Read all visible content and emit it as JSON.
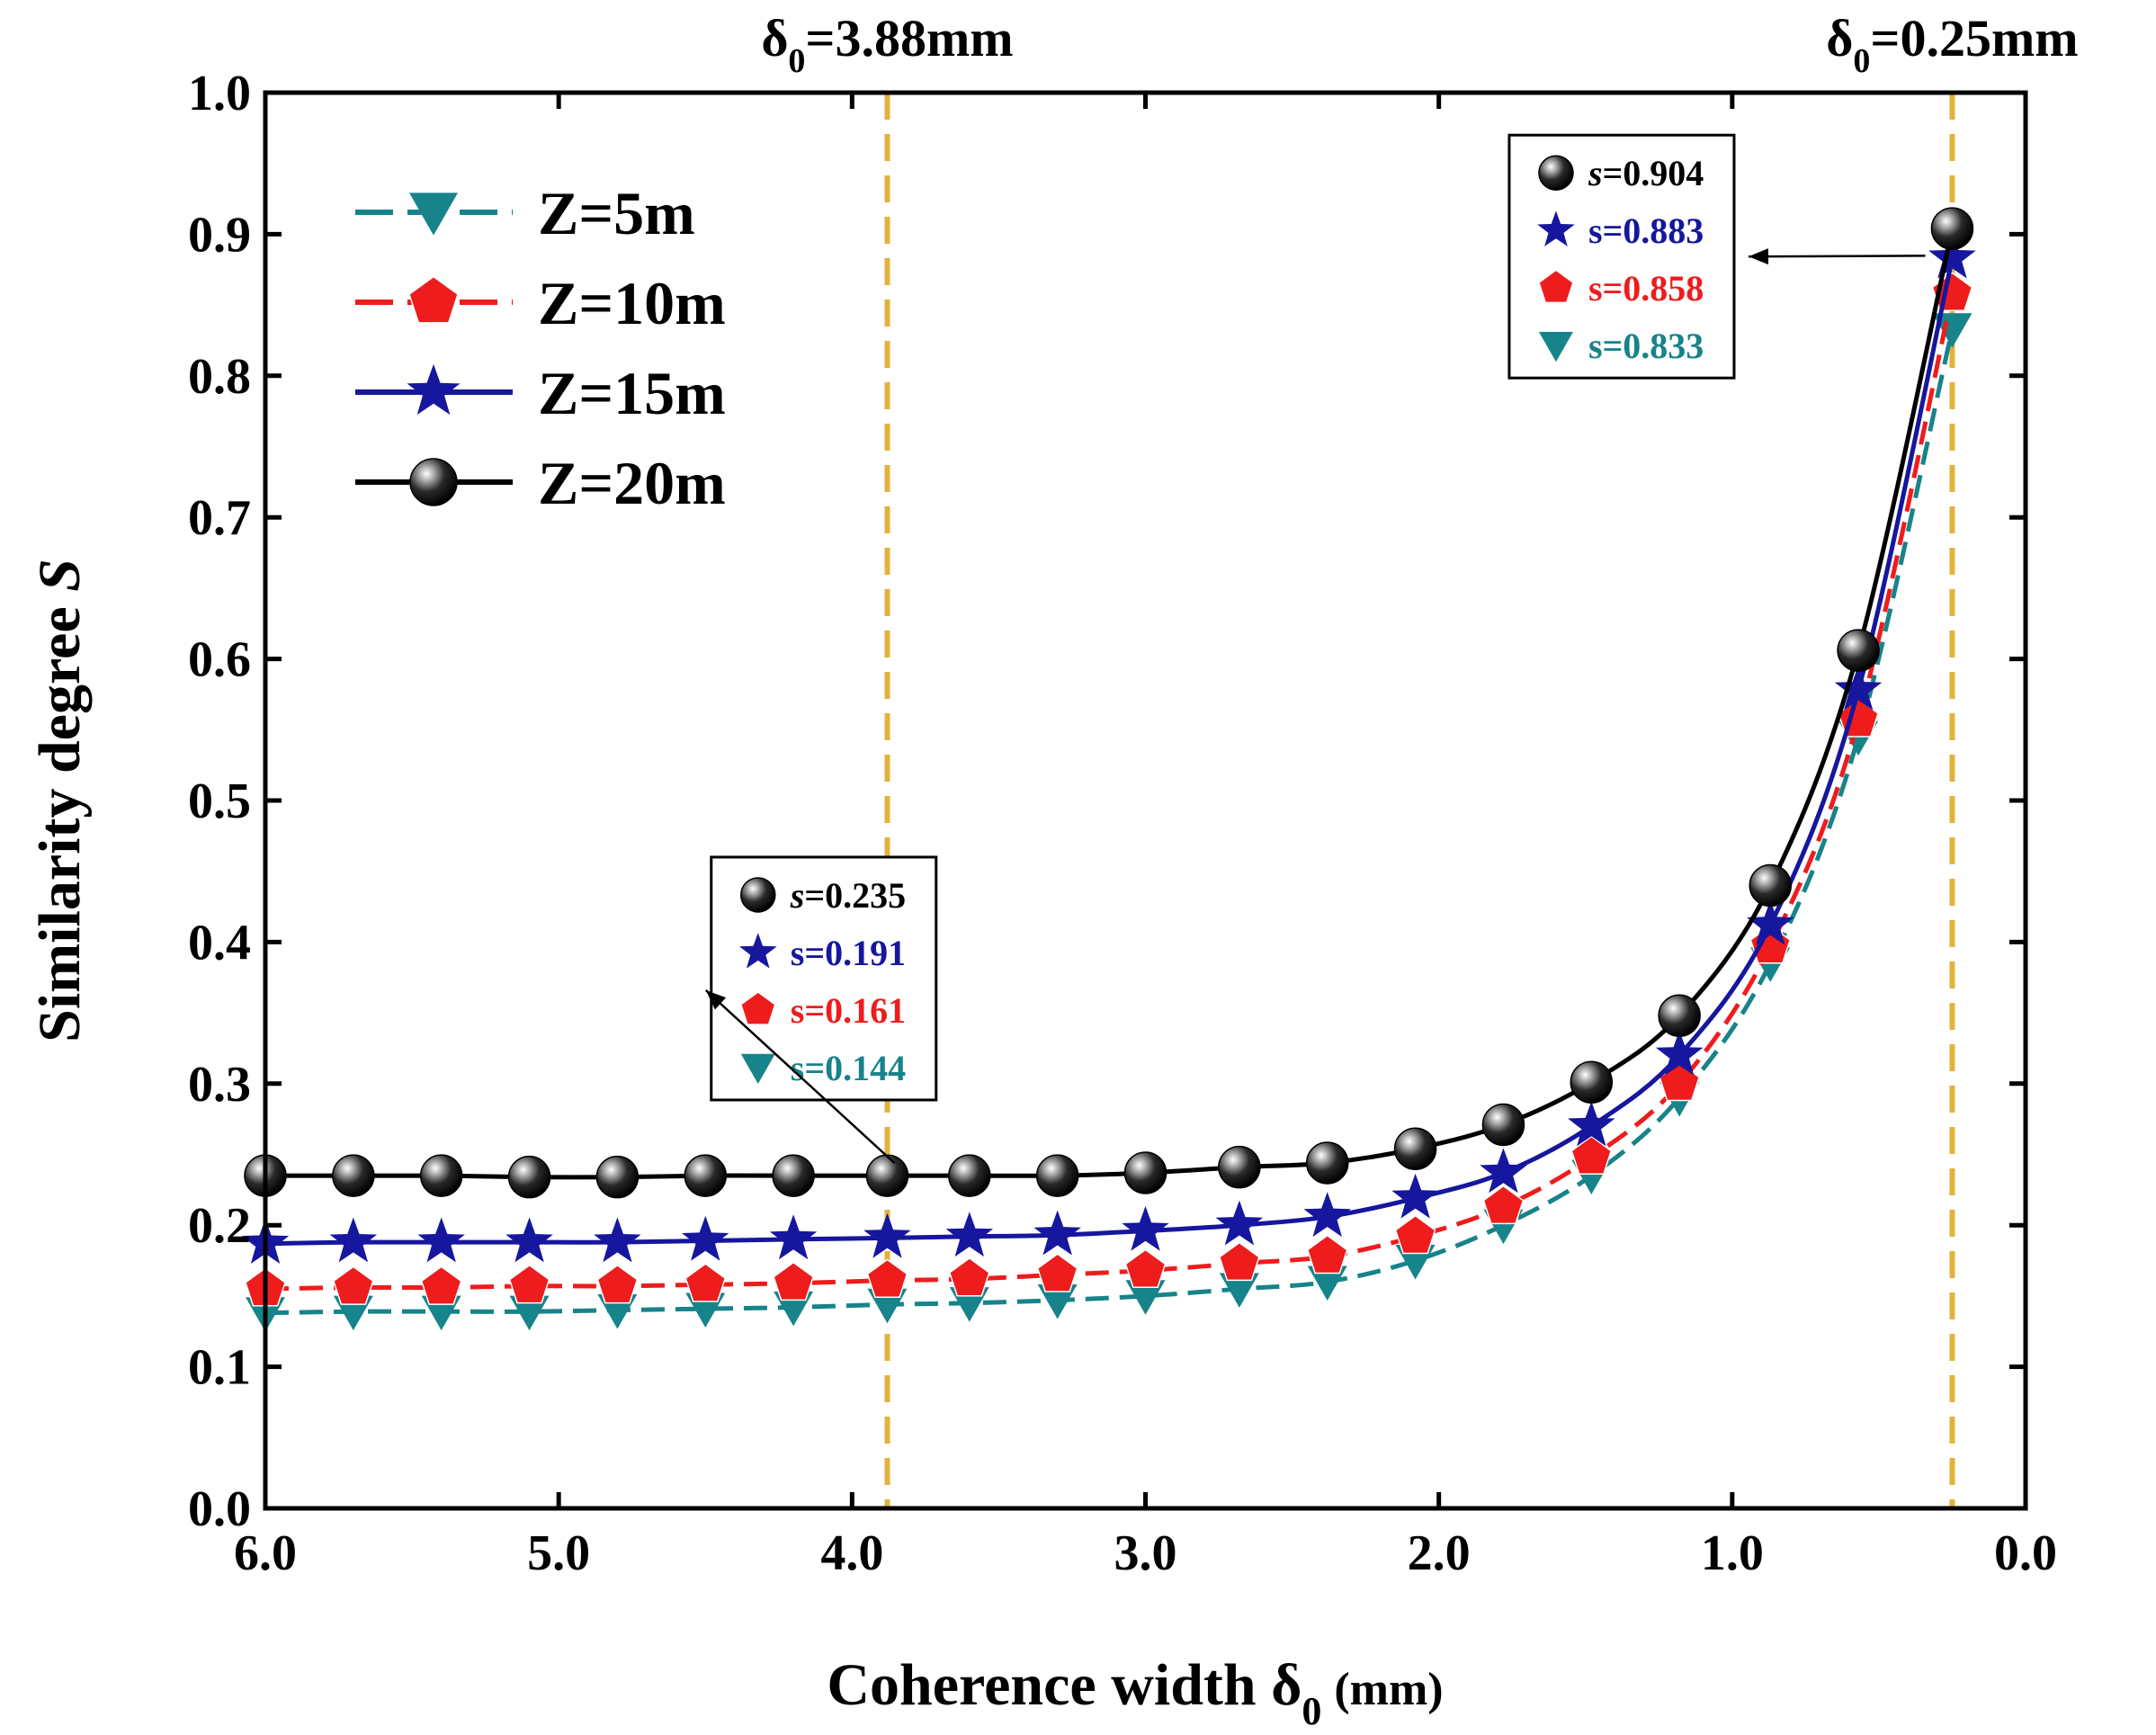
{
  "chart_data": {
    "type": "line",
    "xlabel_main": "Coherence width δ",
    "xlabel_sub": "0",
    "xlabel_unit": "(mm)",
    "ylabel_main": "Similarity degree ",
    "ylabel_symbol": "S",
    "xlim": [
      6.0,
      0.0
    ],
    "ylim": [
      0.0,
      1.0
    ],
    "x_ticks": [
      6.0,
      5.0,
      4.0,
      3.0,
      2.0,
      1.0,
      0.0
    ],
    "x_tick_labels": [
      "6.0",
      "5.0",
      "4.0",
      "3.0",
      "2.0",
      "1.0",
      "0.0"
    ],
    "y_ticks": [
      0.0,
      0.1,
      0.2,
      0.3,
      0.4,
      0.5,
      0.6,
      0.7,
      0.8,
      0.9,
      1.0
    ],
    "y_tick_labels": [
      "0.0",
      "0.1",
      "0.2",
      "0.3",
      "0.4",
      "0.5",
      "0.6",
      "0.7",
      "0.8",
      "0.9",
      "1.0"
    ],
    "x": [
      6.0,
      5.7,
      5.4,
      5.1,
      4.8,
      4.5,
      4.2,
      3.88,
      3.6,
      3.3,
      3.0,
      2.68,
      2.38,
      2.08,
      1.78,
      1.48,
      1.18,
      0.87,
      0.57,
      0.25
    ],
    "series": [
      {
        "name": "Z=5m",
        "marker": "triangle-down",
        "color": "#17838a",
        "dash": true,
        "values": [
          0.138,
          0.139,
          0.139,
          0.139,
          0.14,
          0.141,
          0.142,
          0.144,
          0.145,
          0.147,
          0.15,
          0.155,
          0.16,
          0.175,
          0.2,
          0.235,
          0.29,
          0.385,
          0.545,
          0.833
        ]
      },
      {
        "name": "Z=10m",
        "marker": "pentagon",
        "color": "#ee1c1c",
        "dash": true,
        "values": [
          0.155,
          0.156,
          0.156,
          0.157,
          0.157,
          0.158,
          0.159,
          0.161,
          0.162,
          0.165,
          0.168,
          0.173,
          0.178,
          0.192,
          0.213,
          0.248,
          0.3,
          0.397,
          0.557,
          0.858
        ]
      },
      {
        "name": "Z=15m",
        "marker": "star",
        "color": "#16169e",
        "dash": false,
        "values": [
          0.187,
          0.188,
          0.188,
          0.188,
          0.188,
          0.189,
          0.19,
          0.191,
          0.192,
          0.193,
          0.196,
          0.2,
          0.206,
          0.219,
          0.237,
          0.27,
          0.32,
          0.412,
          0.578,
          0.883
        ]
      },
      {
        "name": "Z=20m",
        "marker": "sphere",
        "color": "#000000",
        "dash": false,
        "values": [
          0.235,
          0.235,
          0.235,
          0.234,
          0.234,
          0.235,
          0.235,
          0.235,
          0.235,
          0.235,
          0.237,
          0.241,
          0.244,
          0.254,
          0.271,
          0.301,
          0.348,
          0.44,
          0.606,
          0.904
        ]
      }
    ],
    "vlines": [
      {
        "x": 3.88,
        "label_main": "δ",
        "label_sub": "0",
        "label_rest": "=3.88mm",
        "color": "#e3b23c"
      },
      {
        "x": 0.25,
        "label_main": "δ",
        "label_sub": "0",
        "label_rest": "=0.25mm",
        "color": "#e3b23c"
      }
    ],
    "annotations": [
      {
        "target_x": 3.88,
        "target_y": 0.235,
        "box_x": 4.48,
        "box_y": 0.46,
        "entries": [
          {
            "marker": "sphere",
            "prefix": "s",
            "value": "=0.235",
            "color": "#000000",
            "italic_prefix": true
          },
          {
            "marker": "star",
            "prefix": "s",
            "value": "=0.191",
            "color": "#16169e",
            "italic_prefix": false
          },
          {
            "marker": "pentagon",
            "prefix": "s",
            "value": "=0.161",
            "color": "#ee1c1c",
            "italic_prefix": false
          },
          {
            "marker": "triangle-down",
            "prefix": "s",
            "value": "=0.144",
            "color": "#17838a",
            "italic_prefix": false
          }
        ]
      },
      {
        "target_x": 0.25,
        "target_y": 0.9,
        "box_x": 1.76,
        "box_y": 0.97,
        "entries": [
          {
            "marker": "sphere",
            "prefix": "s",
            "value": "=0.904",
            "color": "#000000",
            "italic_prefix": true
          },
          {
            "marker": "star",
            "prefix": "s",
            "value": "=0.883",
            "color": "#16169e",
            "italic_prefix": false
          },
          {
            "marker": "pentagon",
            "prefix": "s",
            "value": "=0.858",
            "color": "#ee1c1c",
            "italic_prefix": false
          },
          {
            "marker": "triangle-down",
            "prefix": "s",
            "value": "=0.833",
            "color": "#17838a",
            "italic_prefix": false
          }
        ]
      }
    ],
    "legend_position": "top-left",
    "grid": false
  },
  "colors": {
    "axis": "#000000",
    "guide": "#e3b23c"
  }
}
